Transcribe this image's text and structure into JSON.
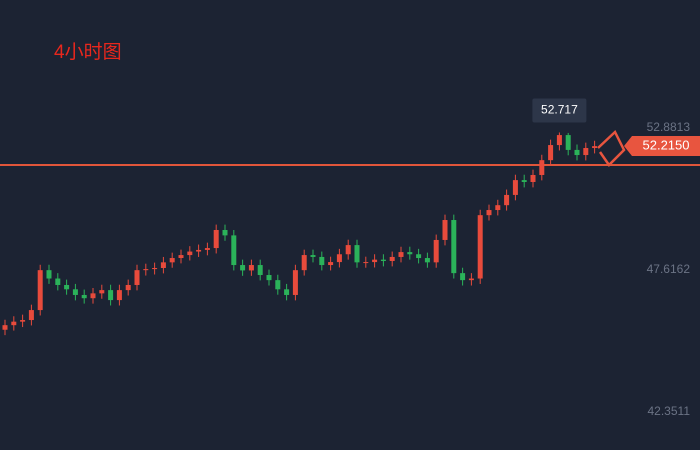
{
  "chart_data": {
    "type": "candlestick",
    "title": "4小时图",
    "series": [
      {
        "up_color": "#e84b3c",
        "down_color": "#2bb35a",
        "open": [
          45.4,
          45.57,
          45.7,
          45.76,
          46.13,
          47.61,
          47.3,
          47.06,
          46.9,
          46.69,
          46.57,
          46.75,
          46.87,
          46.5,
          46.87,
          47.06,
          47.61,
          47.65,
          47.69,
          47.9,
          48.06,
          48.17,
          48.3,
          48.36,
          48.43,
          49.1,
          48.9,
          47.8,
          47.6,
          47.8,
          47.43,
          47.24,
          46.9,
          46.69,
          47.61,
          48.17,
          48.1,
          47.8,
          47.91,
          48.2,
          48.54,
          47.9,
          47.91,
          48.0,
          47.95,
          48.1,
          48.28,
          48.2,
          48.06,
          47.9,
          48.73,
          49.47,
          47.5,
          47.24,
          47.3,
          49.65,
          49.84,
          50.02,
          50.4,
          50.95,
          50.88,
          51.14,
          51.69,
          52.25,
          52.62,
          52.07,
          51.88,
          52.14
        ],
        "high": [
          45.77,
          45.9,
          45.96,
          46.33,
          47.81,
          47.81,
          47.5,
          47.26,
          47.1,
          46.89,
          46.95,
          47.07,
          47.07,
          47.07,
          47.26,
          47.81,
          47.85,
          47.89,
          48.1,
          48.26,
          48.37,
          48.5,
          48.56,
          48.63,
          49.3,
          49.3,
          49.1,
          48.0,
          48.0,
          48.0,
          47.63,
          47.44,
          47.1,
          47.81,
          48.37,
          48.37,
          48.3,
          48.11,
          48.4,
          48.74,
          48.74,
          48.11,
          48.2,
          48.2,
          48.3,
          48.48,
          48.48,
          48.4,
          48.26,
          48.93,
          49.67,
          49.67,
          47.7,
          47.5,
          49.85,
          50.04,
          50.22,
          50.6,
          51.15,
          51.15,
          51.34,
          51.89,
          52.45,
          52.717,
          52.7,
          52.27,
          52.34,
          52.41
        ],
        "low": [
          45.2,
          45.37,
          45.5,
          45.56,
          45.93,
          47.1,
          46.86,
          46.7,
          46.49,
          46.37,
          46.37,
          46.55,
          46.3,
          46.3,
          46.67,
          46.86,
          47.41,
          47.45,
          47.49,
          47.7,
          47.86,
          47.97,
          48.1,
          48.16,
          48.23,
          48.7,
          47.6,
          47.4,
          47.4,
          47.23,
          47.04,
          46.7,
          46.49,
          46.49,
          47.41,
          47.9,
          47.6,
          47.6,
          47.71,
          48.0,
          47.7,
          47.7,
          47.71,
          47.75,
          47.75,
          47.9,
          48.0,
          47.86,
          47.7,
          47.7,
          48.53,
          47.3,
          47.04,
          47.04,
          47.1,
          49.45,
          49.64,
          49.82,
          50.2,
          50.68,
          50.68,
          50.94,
          51.49,
          52.05,
          51.87,
          51.68,
          51.68,
          51.94
        ],
        "close": [
          45.57,
          45.7,
          45.76,
          46.13,
          47.61,
          47.3,
          47.06,
          46.9,
          46.69,
          46.57,
          46.75,
          46.87,
          46.5,
          46.87,
          47.06,
          47.61,
          47.65,
          47.69,
          47.9,
          48.06,
          48.17,
          48.3,
          48.36,
          48.43,
          49.1,
          48.9,
          47.8,
          47.6,
          47.8,
          47.43,
          47.24,
          46.9,
          46.69,
          47.61,
          48.17,
          48.1,
          47.8,
          47.91,
          48.2,
          48.54,
          47.9,
          47.91,
          48.0,
          47.95,
          48.1,
          48.28,
          48.2,
          48.06,
          47.9,
          48.73,
          49.47,
          47.5,
          47.24,
          47.3,
          49.65,
          49.84,
          50.02,
          50.4,
          50.95,
          50.88,
          51.14,
          51.69,
          52.25,
          52.62,
          52.07,
          51.88,
          52.14,
          52.21
        ]
      }
    ],
    "ylim": [
      40.94,
      57.63
    ],
    "yticks": [
      42.3511,
      47.6162,
      52.8813
    ],
    "current_price": {
      "value": 52.215,
      "label": "52.2150"
    },
    "price_color": "#e8553f",
    "hline": 51.51,
    "hline_color": "#e0553a",
    "tooltip_index": 63
  }
}
